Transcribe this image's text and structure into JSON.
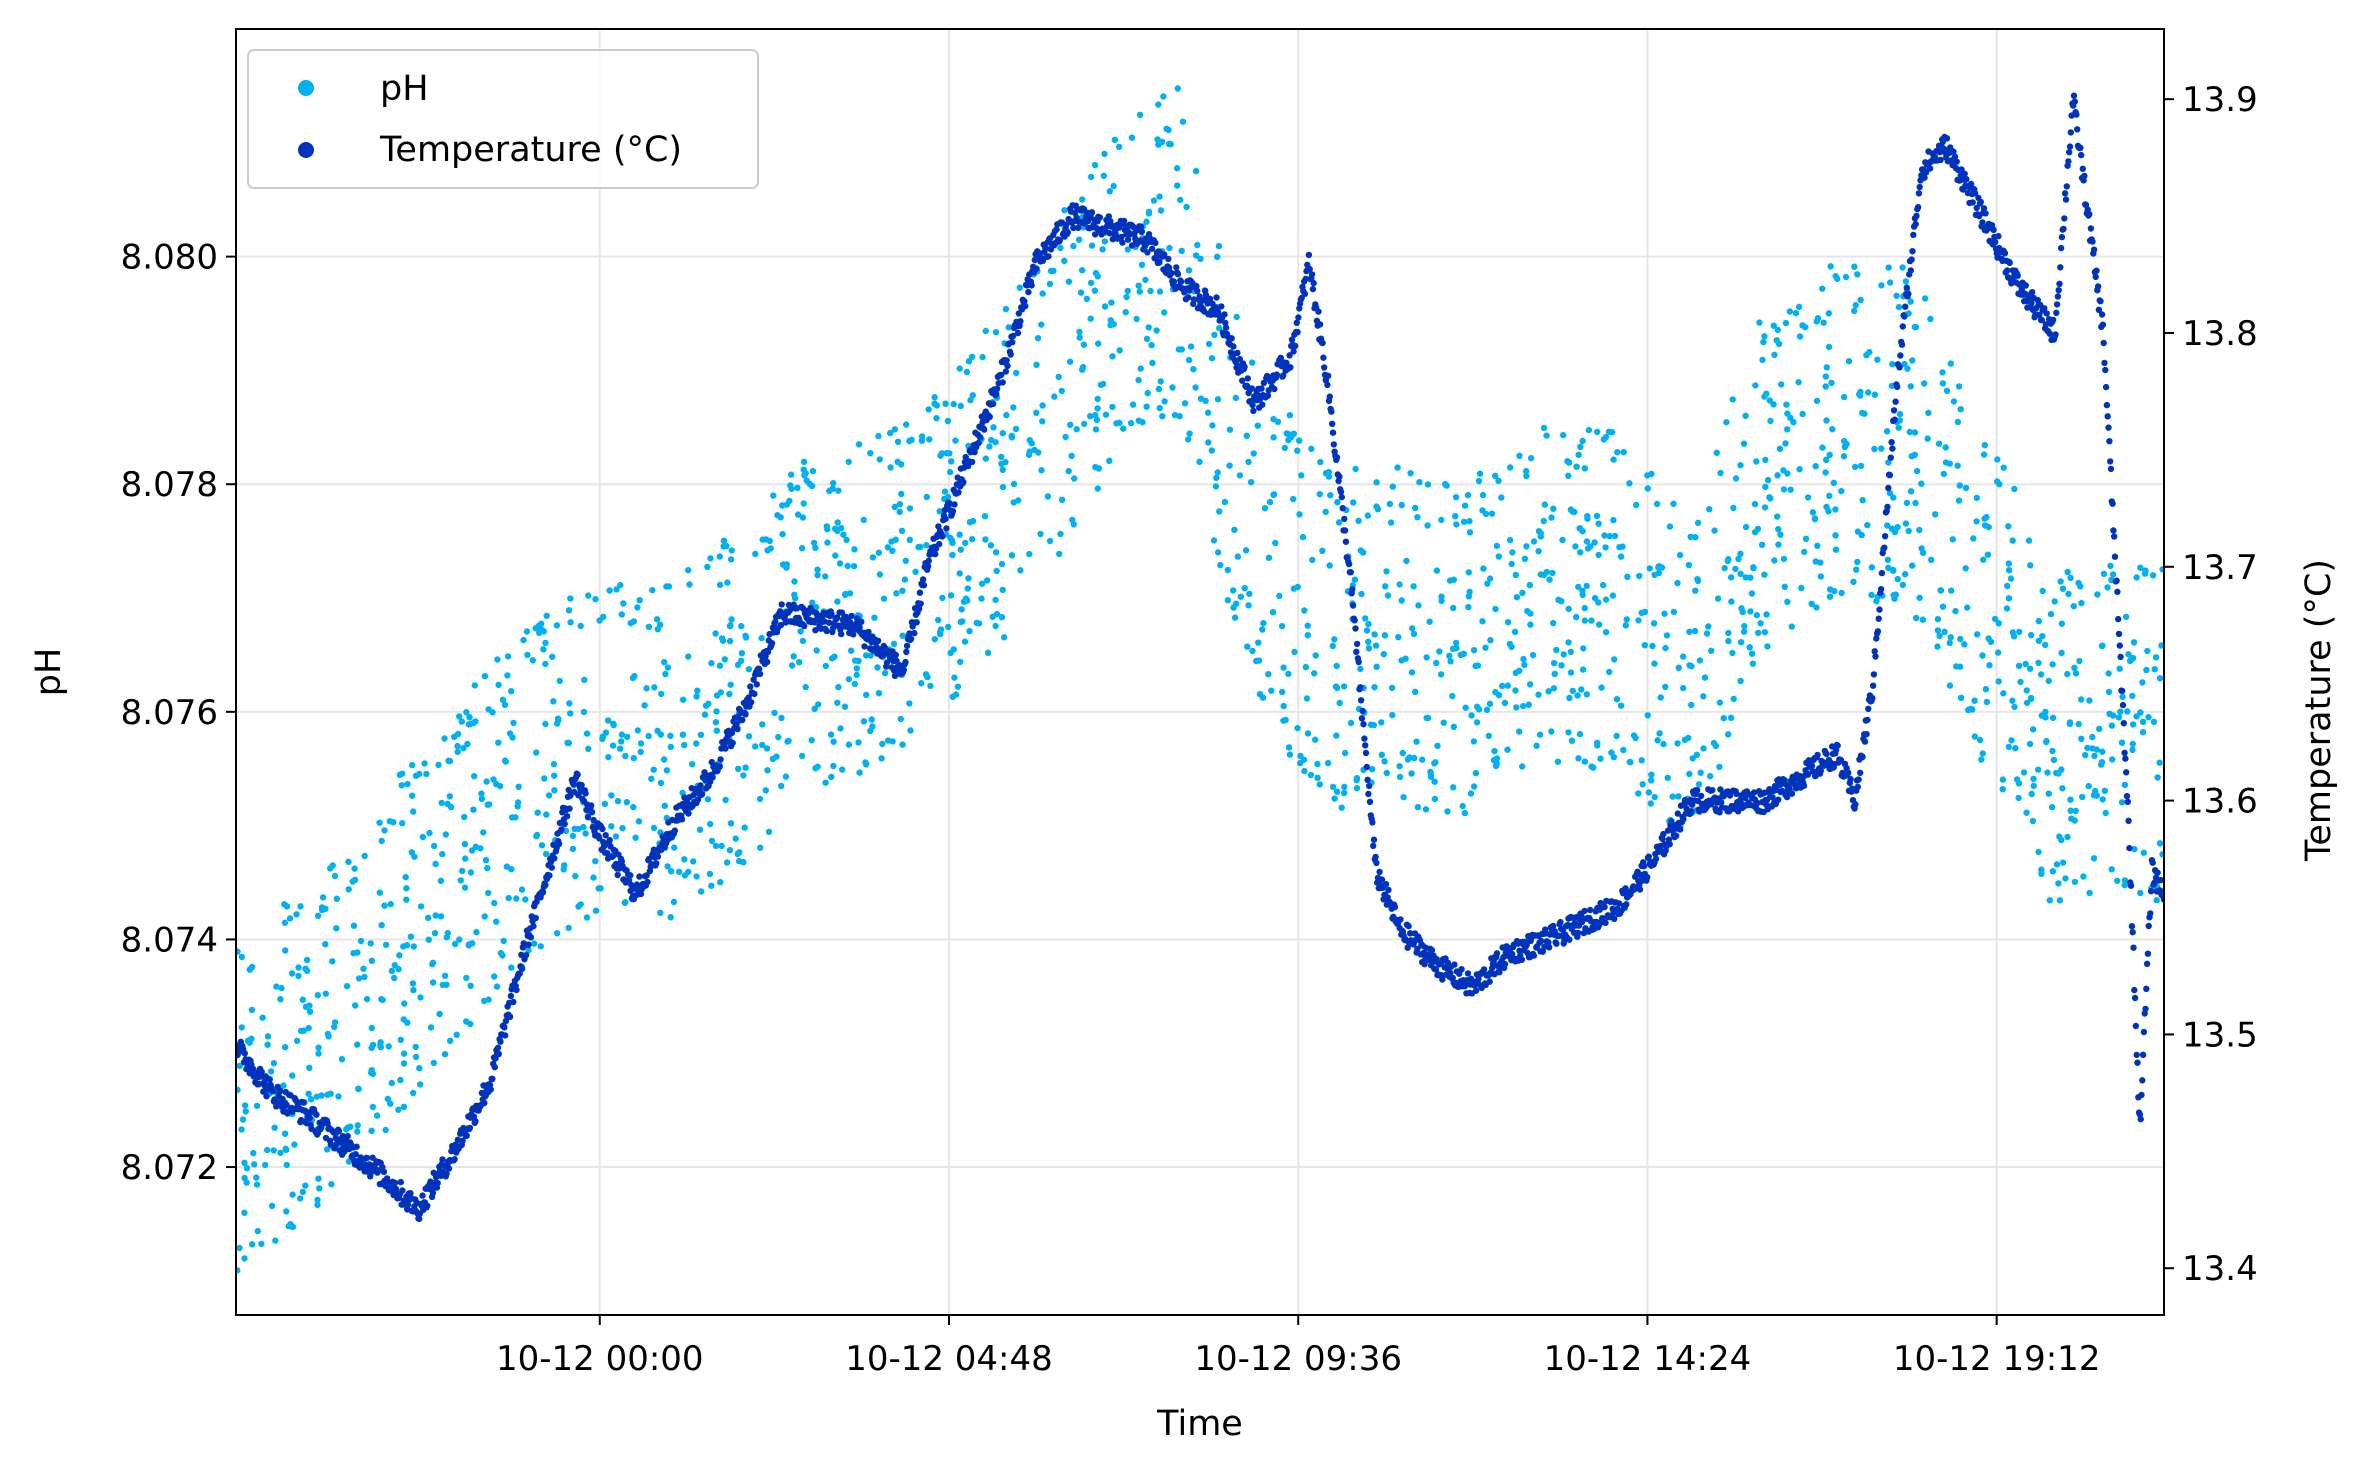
{
  "chart_data": {
    "type": "scatter",
    "xlabel": "Time",
    "ylabel_left": "pH",
    "ylabel_right": "Temperature (°C)",
    "x_range": [
      "10-11 19:00",
      "10-12 21:30"
    ],
    "x_ticks": [
      "10-12 00:00",
      "10-12 04:48",
      "10-12 09:36",
      "10-12 14:24",
      "10-12 19:12"
    ],
    "ylim_left": [
      8.0707,
      8.082
    ],
    "ylim_right": [
      13.38,
      13.93
    ],
    "yticks_left": [
      "8.072",
      "8.074",
      "8.076",
      "8.078",
      "8.080"
    ],
    "yticks_right": [
      "13.4",
      "13.5",
      "13.6",
      "13.7",
      "13.8",
      "13.9"
    ],
    "grid": true,
    "legend_position": "top-left",
    "series": [
      {
        "name": "pH",
        "axis": "left",
        "color": "#00b0f0",
        "band_offsets": [
          -0.0012,
          -0.0006,
          0.0,
          0.0006,
          0.0013
        ],
        "trend_points": [
          [
            "10-11 19:00",
            8.0725
          ],
          [
            "10-11 20:00",
            8.073
          ],
          [
            "10-11 21:00",
            8.0737
          ],
          [
            "10-11 22:00",
            8.0745
          ],
          [
            "10-11 23:00",
            8.0752
          ],
          [
            "10-12 00:00",
            8.0757
          ],
          [
            "10-12 01:00",
            8.0756
          ],
          [
            "10-12 02:00",
            8.0761
          ],
          [
            "10-12 03:00",
            8.0768
          ],
          [
            "10-12 04:00",
            8.077
          ],
          [
            "10-12 05:00",
            8.0776
          ],
          [
            "10-12 06:00",
            8.0785
          ],
          [
            "10-12 07:00",
            8.0795
          ],
          [
            "10-12 08:00",
            8.08
          ],
          [
            "10-12 09:00",
            8.0775
          ],
          [
            "10-12 10:00",
            8.0766
          ],
          [
            "10-12 11:00",
            8.0766
          ],
          [
            "10-12 12:00",
            8.0765
          ],
          [
            "10-12 13:00",
            8.077
          ],
          [
            "10-12 14:00",
            8.0769
          ],
          [
            "10-12 15:00",
            8.0762
          ],
          [
            "10-12 16:00",
            8.078
          ],
          [
            "10-12 17:00",
            8.0784
          ],
          [
            "10-12 18:00",
            8.0784
          ],
          [
            "10-12 19:00",
            8.077
          ],
          [
            "10-12 20:00",
            8.0757
          ],
          [
            "10-12 21:30",
            8.0758
          ]
        ]
      },
      {
        "name": "Temperature (°C)",
        "axis": "right",
        "color": "#0033bb",
        "trend_points": [
          [
            "10-11 19:00",
            13.495
          ],
          [
            "10-11 19:30",
            13.475
          ],
          [
            "10-11 20:00",
            13.465
          ],
          [
            "10-11 21:00",
            13.44
          ],
          [
            "10-11 21:30",
            13.425
          ],
          [
            "10-11 22:00",
            13.45
          ],
          [
            "10-11 22:30",
            13.48
          ],
          [
            "10-11 23:00",
            13.54
          ],
          [
            "10-11 23:40",
            13.61
          ],
          [
            "10-12 00:00",
            13.585
          ],
          [
            "10-12 00:30",
            13.56
          ],
          [
            "10-12 01:00",
            13.59
          ],
          [
            "10-12 01:30",
            13.61
          ],
          [
            "10-12 02:00",
            13.64
          ],
          [
            "10-12 02:30",
            13.68
          ],
          [
            "10-12 03:30",
            13.675
          ],
          [
            "10-12 04:10",
            13.655
          ],
          [
            "10-12 04:30",
            13.7
          ],
          [
            "10-12 05:30",
            13.78
          ],
          [
            "10-12 06:00",
            13.83
          ],
          [
            "10-12 06:30",
            13.85
          ],
          [
            "10-12 07:30",
            13.84
          ],
          [
            "10-12 08:00",
            13.82
          ],
          [
            "10-12 08:30",
            13.81
          ],
          [
            "10-12 09:00",
            13.77
          ],
          [
            "10-12 09:30",
            13.79
          ],
          [
            "10-12 09:45",
            13.83
          ],
          [
            "10-12 10:00",
            13.78
          ],
          [
            "10-12 10:20",
            13.69
          ],
          [
            "10-12 10:40",
            13.57
          ],
          [
            "10-12 11:00",
            13.545
          ],
          [
            "10-12 11:30",
            13.53
          ],
          [
            "10-12 12:00",
            13.52
          ],
          [
            "10-12 12:30",
            13.535
          ],
          [
            "10-12 13:00",
            13.54
          ],
          [
            "10-12 14:00",
            13.555
          ],
          [
            "10-12 14:30",
            13.575
          ],
          [
            "10-12 15:00",
            13.6
          ],
          [
            "10-12 16:00",
            13.6
          ],
          [
            "10-12 16:30",
            13.61
          ],
          [
            "10-12 17:00",
            13.62
          ],
          [
            "10-12 17:15",
            13.6
          ],
          [
            "10-12 17:30",
            13.65
          ],
          [
            "10-12 17:50",
            13.78
          ],
          [
            "10-12 18:10",
            13.87
          ],
          [
            "10-12 18:30",
            13.88
          ],
          [
            "10-12 19:00",
            13.85
          ],
          [
            "10-12 19:30",
            13.82
          ],
          [
            "10-12 20:00",
            13.8
          ],
          [
            "10-12 20:15",
            13.9
          ],
          [
            "10-12 20:40",
            13.8
          ],
          [
            "10-12 21:00",
            13.6
          ],
          [
            "10-12 21:10",
            13.46
          ],
          [
            "10-12 21:20",
            13.57
          ],
          [
            "10-12 21:30",
            13.56
          ]
        ]
      }
    ]
  }
}
